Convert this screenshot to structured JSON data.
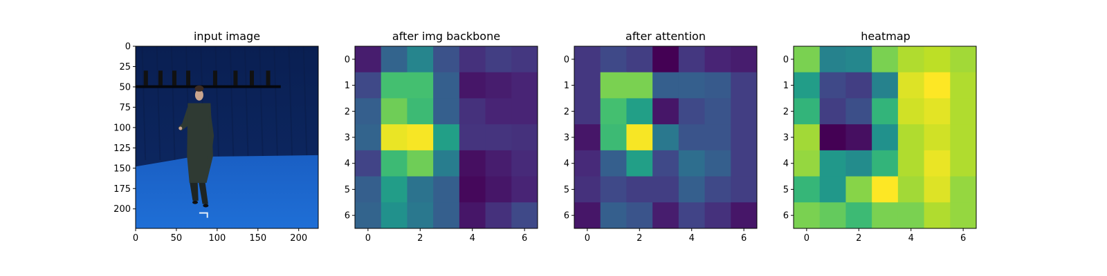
{
  "chart_data": [
    {
      "type": "image",
      "title": "input image",
      "xlim": [
        0,
        224
      ],
      "ylim": [
        224,
        0
      ],
      "xticks": [
        0,
        50,
        100,
        150,
        200
      ],
      "yticks": [
        0,
        25,
        50,
        75,
        100,
        125,
        150,
        175,
        200
      ],
      "scene": {
        "background_color": "#0d2a66",
        "floor_color": "#1f6fd6",
        "floor_start_y": 140,
        "light_bar_y": 48,
        "person_color": "#2f3a33"
      }
    },
    {
      "type": "heatmap",
      "title": "after img backbone",
      "colormap": "viridis",
      "xticks": [
        0,
        2,
        4,
        6
      ],
      "yticks": [
        0,
        1,
        2,
        3,
        4,
        5,
        6
      ],
      "values": [
        [
          0.08,
          0.32,
          0.45,
          0.25,
          0.14,
          0.18,
          0.16
        ],
        [
          0.22,
          0.7,
          0.7,
          0.3,
          0.06,
          0.08,
          0.1
        ],
        [
          0.3,
          0.78,
          0.68,
          0.3,
          0.14,
          0.1,
          0.1
        ],
        [
          0.32,
          0.97,
          0.99,
          0.56,
          0.15,
          0.15,
          0.14
        ],
        [
          0.2,
          0.68,
          0.78,
          0.42,
          0.04,
          0.08,
          0.12
        ],
        [
          0.3,
          0.55,
          0.38,
          0.3,
          0.02,
          0.06,
          0.1
        ],
        [
          0.32,
          0.5,
          0.4,
          0.3,
          0.06,
          0.14,
          0.22
        ]
      ]
    },
    {
      "type": "heatmap",
      "title": "after attention",
      "colormap": "viridis",
      "xticks": [
        0,
        2,
        4,
        6
      ],
      "yticks": [
        0,
        1,
        2,
        3,
        4,
        5,
        6
      ],
      "values": [
        [
          0.16,
          0.22,
          0.18,
          0.0,
          0.16,
          0.1,
          0.08
        ],
        [
          0.16,
          0.8,
          0.8,
          0.3,
          0.3,
          0.28,
          0.18
        ],
        [
          0.16,
          0.7,
          0.56,
          0.06,
          0.22,
          0.26,
          0.18
        ],
        [
          0.06,
          0.68,
          0.99,
          0.4,
          0.26,
          0.26,
          0.18
        ],
        [
          0.12,
          0.3,
          0.56,
          0.22,
          0.36,
          0.3,
          0.18
        ],
        [
          0.14,
          0.22,
          0.18,
          0.18,
          0.3,
          0.22,
          0.18
        ],
        [
          0.06,
          0.3,
          0.26,
          0.08,
          0.2,
          0.14,
          0.06
        ]
      ]
    },
    {
      "type": "heatmap",
      "title": "heatmap",
      "colormap": "viridis",
      "xticks": [
        0,
        2,
        4,
        6
      ],
      "yticks": [
        0,
        1,
        2,
        3,
        4,
        5,
        6
      ],
      "values": [
        [
          0.8,
          0.44,
          0.46,
          0.8,
          0.88,
          0.9,
          0.86
        ],
        [
          0.55,
          0.22,
          0.18,
          0.44,
          0.95,
          1.0,
          0.88
        ],
        [
          0.65,
          0.18,
          0.24,
          0.65,
          0.93,
          0.96,
          0.88
        ],
        [
          0.86,
          0.0,
          0.04,
          0.5,
          0.88,
          0.93,
          0.88
        ],
        [
          0.84,
          0.53,
          0.48,
          0.65,
          0.88,
          0.97,
          0.88
        ],
        [
          0.66,
          0.53,
          0.82,
          1.0,
          0.86,
          0.95,
          0.84
        ],
        [
          0.8,
          0.76,
          0.68,
          0.8,
          0.8,
          0.88,
          0.84
        ]
      ]
    }
  ]
}
